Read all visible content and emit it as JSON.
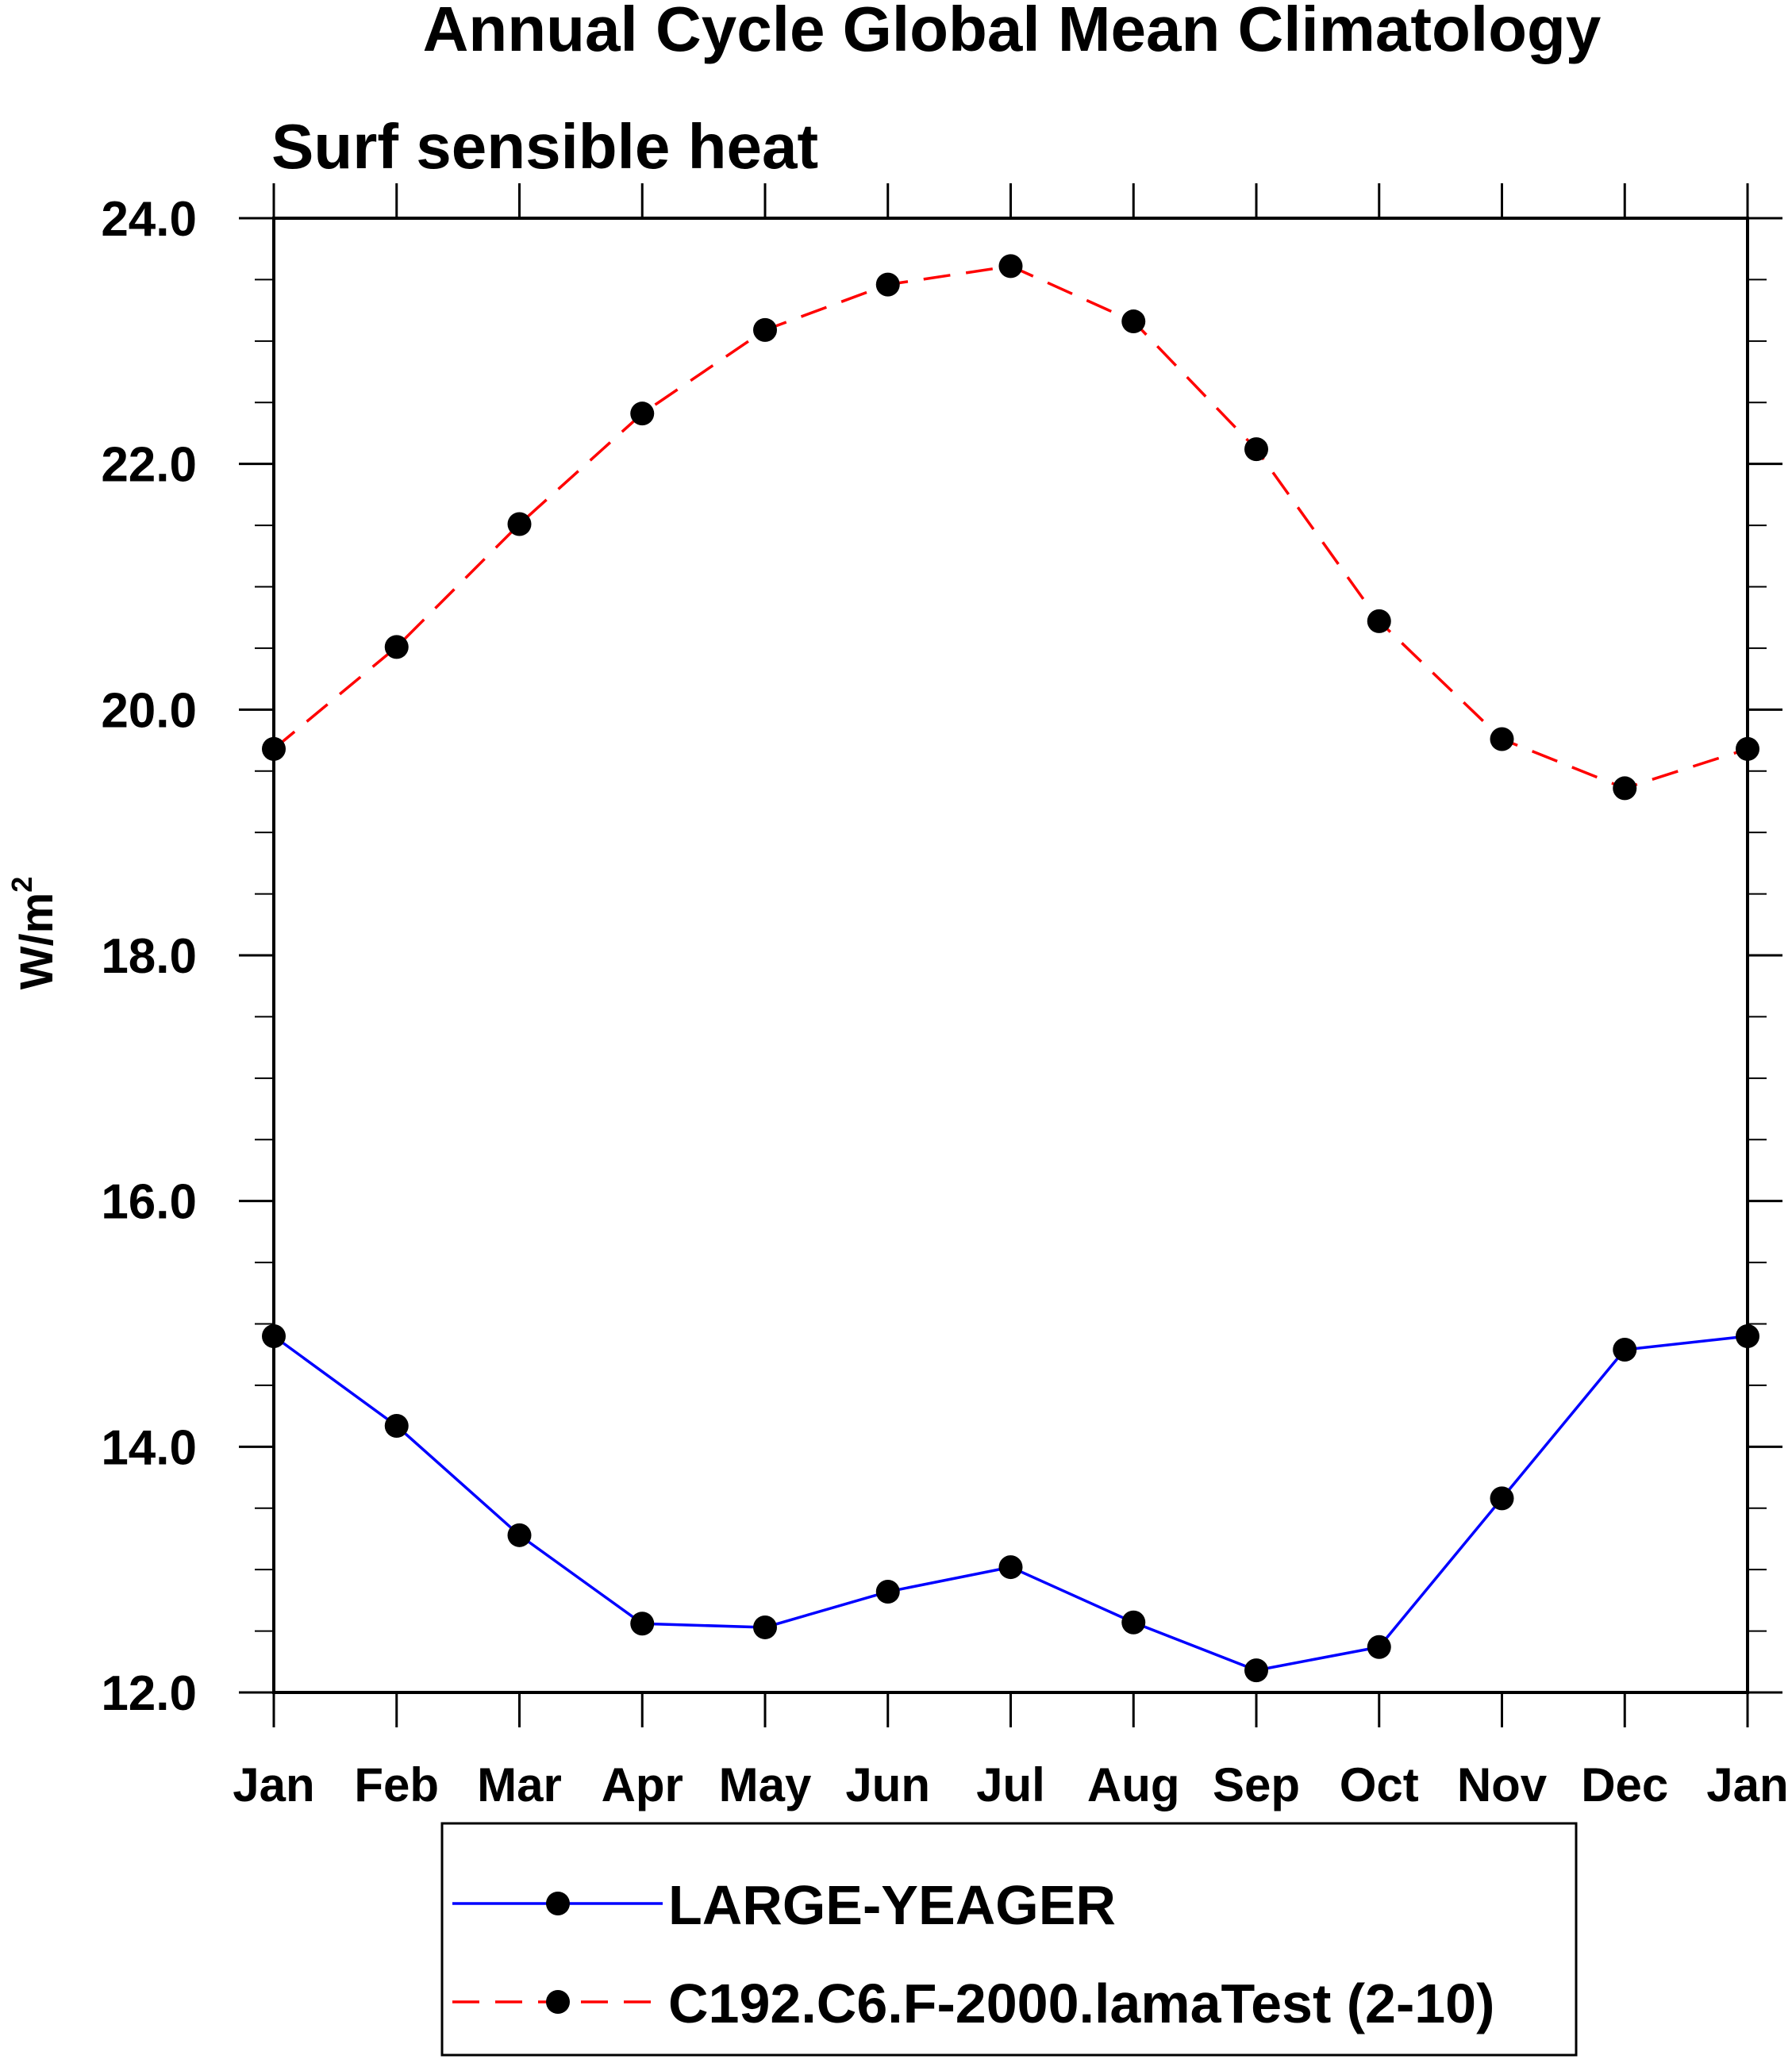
{
  "chart_data": {
    "type": "line",
    "title": "Annual Cycle Global Mean Climatology",
    "subtitle": "Surf sensible heat",
    "xlabel": "",
    "ylabel": "W/m",
    "ylabel_superscript": "2",
    "categories": [
      "Jan",
      "Feb",
      "Mar",
      "Apr",
      "May",
      "Jun",
      "Jul",
      "Aug",
      "Sep",
      "Oct",
      "Nov",
      "Dec",
      "Jan"
    ],
    "ylim": [
      12.0,
      24.0
    ],
    "yticks": [
      "12.0",
      "14.0",
      "16.0",
      "18.0",
      "20.0",
      "22.0",
      "24.0"
    ],
    "grid": false,
    "legend_position": "bottom",
    "series": [
      {
        "name": "LARGE-YEAGER",
        "color": "#0000ff",
        "line_style": "solid",
        "marker": "filled-circle",
        "values": [
          14.9,
          14.17,
          13.28,
          12.56,
          12.53,
          12.82,
          13.02,
          12.57,
          12.18,
          12.37,
          13.58,
          14.79,
          14.9
        ]
      },
      {
        "name": "C192.C6.F-2000.lamaTest (2-10)",
        "color": "#ff0000",
        "line_style": "dashed",
        "marker": "filled-circle",
        "values": [
          19.68,
          20.51,
          21.51,
          22.41,
          23.09,
          23.46,
          23.61,
          23.16,
          22.12,
          20.72,
          19.76,
          19.36,
          19.68
        ]
      }
    ]
  }
}
